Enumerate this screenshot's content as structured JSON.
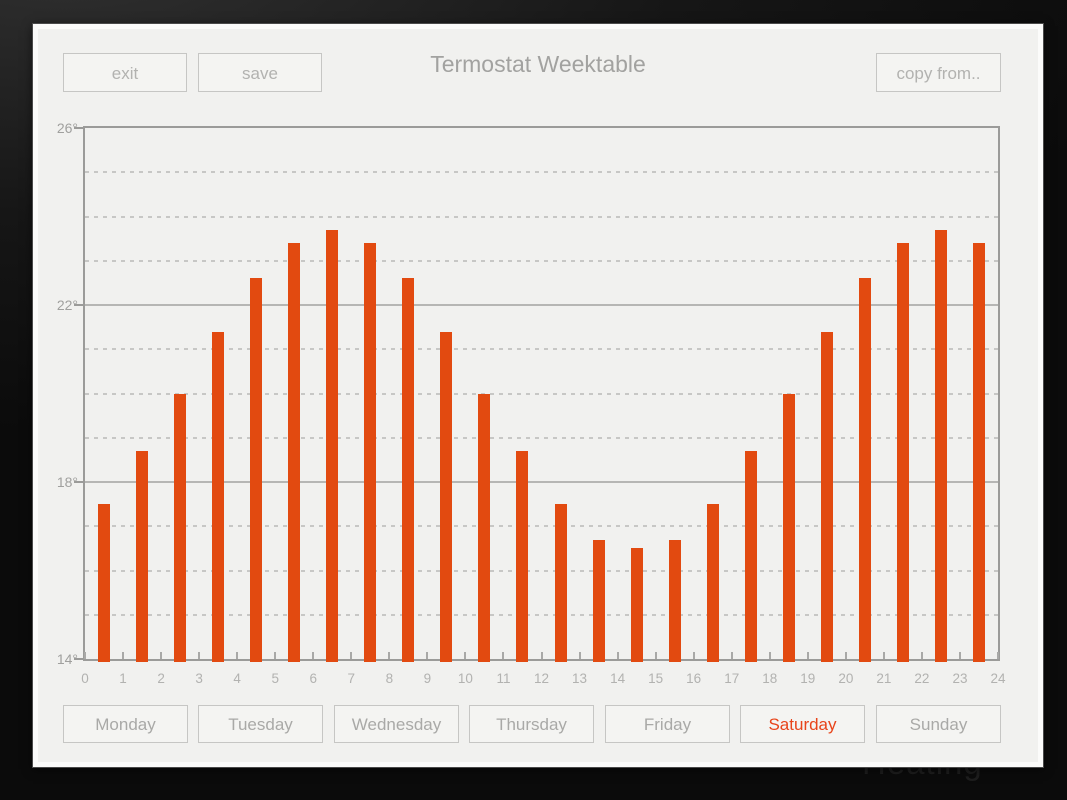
{
  "window": {
    "background_watermark": "Heating"
  },
  "header": {
    "title": "Termostat Weektable",
    "exit_label": "exit",
    "save_label": "save",
    "copy_from_label": "copy from.."
  },
  "days": {
    "active": "Saturday",
    "items": [
      {
        "label": "Monday",
        "active": false
      },
      {
        "label": "Tuesday",
        "active": false
      },
      {
        "label": "Wednesday",
        "active": false
      },
      {
        "label": "Thursday",
        "active": false
      },
      {
        "label": "Friday",
        "active": false
      },
      {
        "label": "Saturday",
        "active": true
      },
      {
        "label": "Sunday",
        "active": false
      }
    ]
  },
  "colors": {
    "bar": "#e24a10",
    "active_day_text": "#e8441a",
    "panel_background": "#f1f1ef",
    "muted_text": "#a9a9a7"
  },
  "chart_data": {
    "type": "bar",
    "title": "",
    "categories": [
      0,
      1,
      2,
      3,
      4,
      5,
      6,
      7,
      8,
      9,
      10,
      11,
      12,
      13,
      14,
      15,
      16,
      17,
      18,
      19,
      20,
      21,
      22,
      23
    ],
    "values": [
      17.5,
      18.7,
      20.0,
      21.4,
      22.6,
      23.4,
      23.7,
      23.4,
      22.6,
      21.4,
      20.0,
      18.7,
      17.5,
      16.7,
      16.5,
      16.7,
      17.5,
      18.7,
      20.0,
      21.4,
      22.6,
      23.4,
      23.7,
      23.4
    ],
    "xlabel": "",
    "ylabel": "",
    "xlim": [
      0,
      24
    ],
    "ylim": [
      14,
      26
    ],
    "x_tick_labels": [
      "0",
      "1",
      "2",
      "3",
      "4",
      "5",
      "6",
      "7",
      "8",
      "9",
      "10",
      "11",
      "12",
      "13",
      "14",
      "15",
      "16",
      "17",
      "18",
      "19",
      "20",
      "21",
      "22",
      "23",
      "24"
    ],
    "y_ticks_labeled": [
      {
        "value": 26,
        "label": "26°"
      },
      {
        "value": 22,
        "label": "22°"
      },
      {
        "value": 18,
        "label": "18°"
      },
      {
        "value": 14,
        "label": "14°"
      }
    ],
    "grid": {
      "minor_step": 1,
      "minor_style": "dashed",
      "solid_lines": [
        22,
        18
      ],
      "legend": "none"
    },
    "bar_color": "#e24a10"
  }
}
